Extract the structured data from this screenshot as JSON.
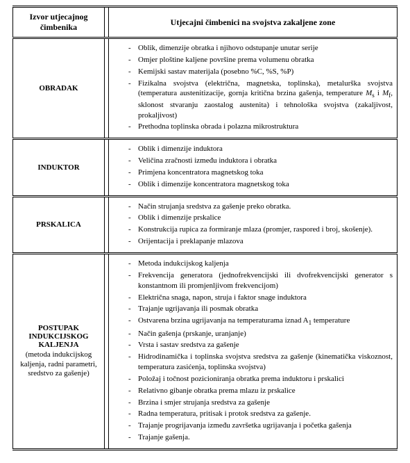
{
  "header": {
    "col1": "Izvor utjecajnog čimbenika",
    "col2": "Utjecajni čimbenici na svojstva zakaljene zone"
  },
  "rows": [
    {
      "label": "OBRADAK",
      "sub": "",
      "items": [
        "Oblik, dimenzije obratka i njihovo odstupanje unutar serije",
        "Omjer ploštine kaljene površine prema volumenu obratka",
        "Kemijski sastav materijala (posebno %C, %S, %P)",
        "Fizikalna svojstva (električna, magnetska, toplinska), metalurška svojstva (temperatura austenitizacije, gornja kritična brzina gašenja, temperature <span class=\"ital\">M</span><sub>s</sub> i <span class=\"ital\">M</span><sub>f</sub>, sklonost stvaranju zaostalog austenita) i tehnološka svojstva (zakaljivost, prokaljivost)",
        "Prethodna toplinska obrada i polazna mikrostruktura"
      ]
    },
    {
      "label": "INDUKTOR",
      "sub": "",
      "items": [
        "Oblik i dimenzije induktora",
        "Veličina zračnosti između induktora i obratka",
        "Primjena koncentratora magnetskog toka",
        "Oblik i dimenzije koncentratora magnetskog toka"
      ]
    },
    {
      "label": "PRSKALICA",
      "sub": "",
      "items": [
        "Način strujanja sredstva za gašenje preko obratka.",
        "Oblik i dimenzije prskalice",
        "Konstrukcija rupica za formiranje mlaza (promjer, raspored i broj, skošenje).",
        "Orijentacija i preklapanje mlazova"
      ]
    },
    {
      "label": "POSTUPAK INDUKCIJSKOG KALJENJA",
      "sub": "(metoda indukcijskog kaljenja, radni parametri, sredstvo za gašenje)",
      "items": [
        "Metoda indukcijskog kaljenja",
        "Frekvencija generatora (jednofrekvencijski ili dvofrekvencijski generator s konstantnom ili promjenljivom frekvencijom)",
        "Električna snaga, napon, struja i faktor snage induktora",
        "Trajanje ugrijavanja ili posmak obratka",
        "Ostvarena brzina ugrijavanja na temperaturama iznad A<sub>1</sub> temperature",
        "Način gašenja (prskanje, uranjanje)",
        "Vrsta i sastav sredstva za gašenje",
        "Hidrodinamička i toplinska svojstva sredstva za gašenje (kinematička viskoznost, temperatura zasićenja, toplinska svojstva)",
        "Položaj i točnost pozicioniranja obratka prema induktoru i prskalici",
        "Relativno gibanje obratka prema mlazu iz prskalice",
        "Brzina i smjer strujanja sredstva za gašenje",
        "Radna temperatura, pritisak i protok sredstva za gašenje.",
        "Trajanje progrijavanja između završetka ugrijavanja i početka gašenja",
        "Trajanje gašenja."
      ]
    }
  ]
}
